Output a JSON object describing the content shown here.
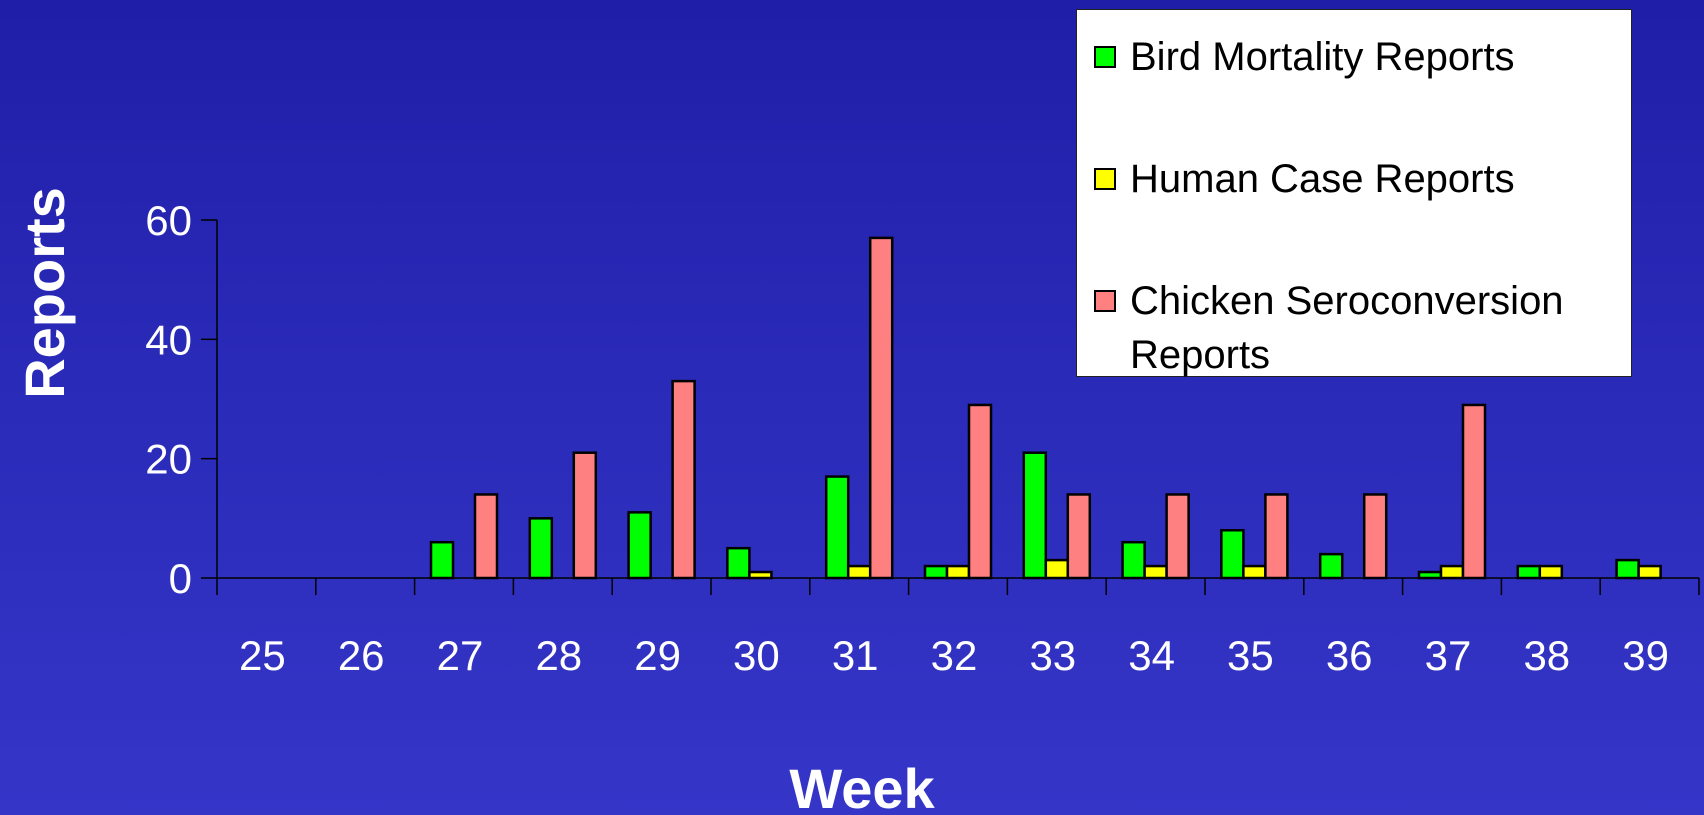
{
  "chart_data": {
    "type": "bar",
    "xlabel": "Week",
    "ylabel": "Reports",
    "ylim": [
      0,
      60
    ],
    "yticks": [
      0,
      20,
      40,
      60
    ],
    "categories": [
      "25",
      "26",
      "27",
      "28",
      "29",
      "30",
      "31",
      "32",
      "33",
      "34",
      "35",
      "36",
      "37",
      "38",
      "39"
    ],
    "series": [
      {
        "name": "Bird Mortality Reports",
        "color": "#00ff00",
        "values": [
          0,
          0,
          6,
          10,
          11,
          5,
          17,
          2,
          21,
          6,
          8,
          4,
          1,
          2,
          3
        ]
      },
      {
        "name": "Human Case Reports",
        "color": "#ffff00",
        "values": [
          0,
          0,
          0,
          0,
          0,
          1,
          2,
          2,
          3,
          2,
          2,
          0,
          2,
          2,
          2
        ]
      },
      {
        "name": "Chicken Seroconversion Reports",
        "color": "#ff8080",
        "values": [
          0,
          0,
          14,
          21,
          33,
          0,
          57,
          29,
          14,
          14,
          14,
          14,
          29,
          0,
          0
        ]
      }
    ],
    "grid": false,
    "legend_position": "top-right"
  }
}
